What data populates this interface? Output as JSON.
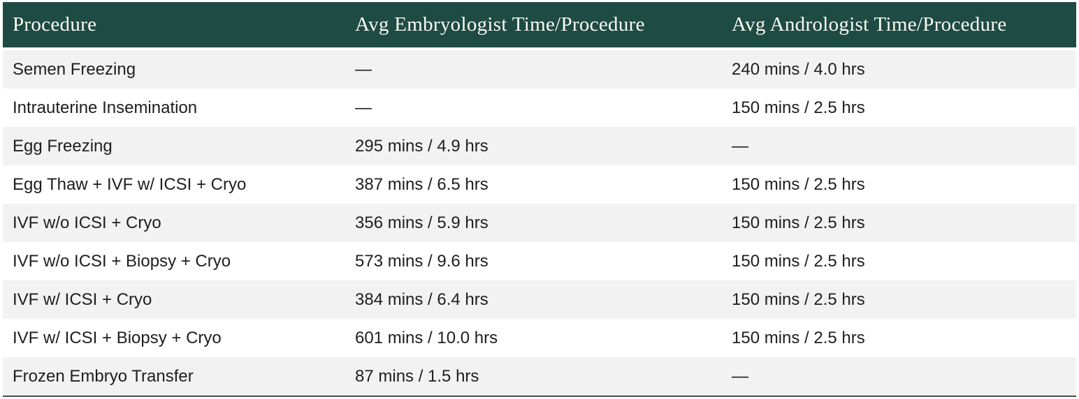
{
  "chart_data": {
    "type": "table",
    "columns": [
      "Procedure",
      "Avg Embryologist Time/Procedure",
      "Avg Andrologist Time/Procedure"
    ],
    "rows": [
      {
        "procedure": "Semen Freezing",
        "embryologist_time": "—",
        "andrologist_time": "240 mins / 4.0 hrs"
      },
      {
        "procedure": "Intrauterine Insemination",
        "embryologist_time": "—",
        "andrologist_time": "150 mins / 2.5 hrs"
      },
      {
        "procedure": "Egg Freezing",
        "embryologist_time": "295 mins / 4.9 hrs",
        "andrologist_time": "—"
      },
      {
        "procedure": "Egg Thaw + IVF w/ ICSI + Cryo",
        "embryologist_time": "387 mins / 6.5 hrs",
        "andrologist_time": "150 mins / 2.5 hrs"
      },
      {
        "procedure": "IVF w/o ICSI + Cryo",
        "embryologist_time": "356 mins / 5.9 hrs",
        "andrologist_time": "150 mins / 2.5 hrs"
      },
      {
        "procedure": "IVF w/o ICSI + Biopsy + Cryo",
        "embryologist_time": "573 mins / 9.6 hrs",
        "andrologist_time": "150 mins / 2.5 hrs"
      },
      {
        "procedure": "IVF w/ ICSI + Cryo",
        "embryologist_time": "384 mins / 6.4 hrs",
        "andrologist_time": "150 mins / 2.5 hrs"
      },
      {
        "procedure": "IVF w/ ICSI + Biopsy + Cryo",
        "embryologist_time": "601 mins / 10.0 hrs",
        "andrologist_time": "150 mins / 2.5 hrs"
      },
      {
        "procedure": "Frozen Embryo Transfer",
        "embryologist_time": "87 mins / 1.5 hrs",
        "andrologist_time": "—"
      }
    ],
    "layout": {
      "header_position": "top",
      "zebra_striping": "odd-rows-shaded",
      "grid": false,
      "legend": "none"
    }
  },
  "colors": {
    "header_bg": "#1e4b44",
    "header_text": "#fbfaf2",
    "row_shaded_bg": "#f3f2f2",
    "row_plain_bg": "#ffffff",
    "body_text": "#1e1e1e",
    "bottom_rule": "#4b4b4b"
  }
}
